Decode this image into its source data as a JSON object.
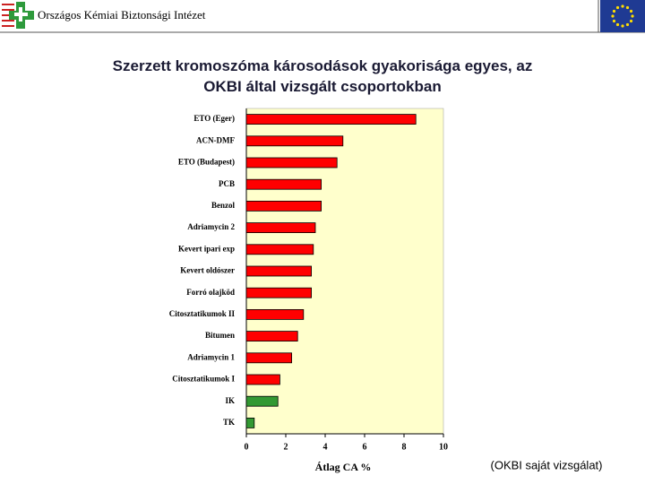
{
  "header": {
    "institute": "Országos Kémiai Biztonsági Intézet"
  },
  "chart_data": {
    "type": "bar",
    "orientation": "horizontal",
    "title": "Szerzett kromoszóma károsodások gyakorisága egyes, az OKBI által vizsgált csoportokban",
    "xlabel": "Átlag CA %",
    "note": "(OKBI saját vizsgálat)",
    "categories": [
      "ETO (Eger)",
      "ACN-DMF",
      "ETO (Budapest)",
      "PCB",
      "Benzol",
      "Adriamycin 2",
      "Kevert ipari exp",
      "Kevert oldószer",
      "Forró olajköd",
      "Citosztatikumok II",
      "Bitumen",
      "Adriamycin 1",
      "Citosztatikumok I",
      "IK",
      "TK"
    ],
    "values": [
      8.6,
      4.9,
      4.6,
      3.8,
      3.8,
      3.5,
      3.4,
      3.3,
      3.3,
      2.9,
      2.6,
      2.3,
      1.7,
      1.6,
      0.4
    ],
    "colors": [
      "#ff0000",
      "#ff0000",
      "#ff0000",
      "#ff0000",
      "#ff0000",
      "#ff0000",
      "#ff0000",
      "#ff0000",
      "#ff0000",
      "#ff0000",
      "#ff0000",
      "#ff0000",
      "#ff0000",
      "#339933",
      "#339933"
    ],
    "xlim": [
      0,
      10
    ],
    "xticks": [
      0,
      2,
      4,
      6,
      8,
      10
    ],
    "plot_background": "#ffffcc"
  }
}
